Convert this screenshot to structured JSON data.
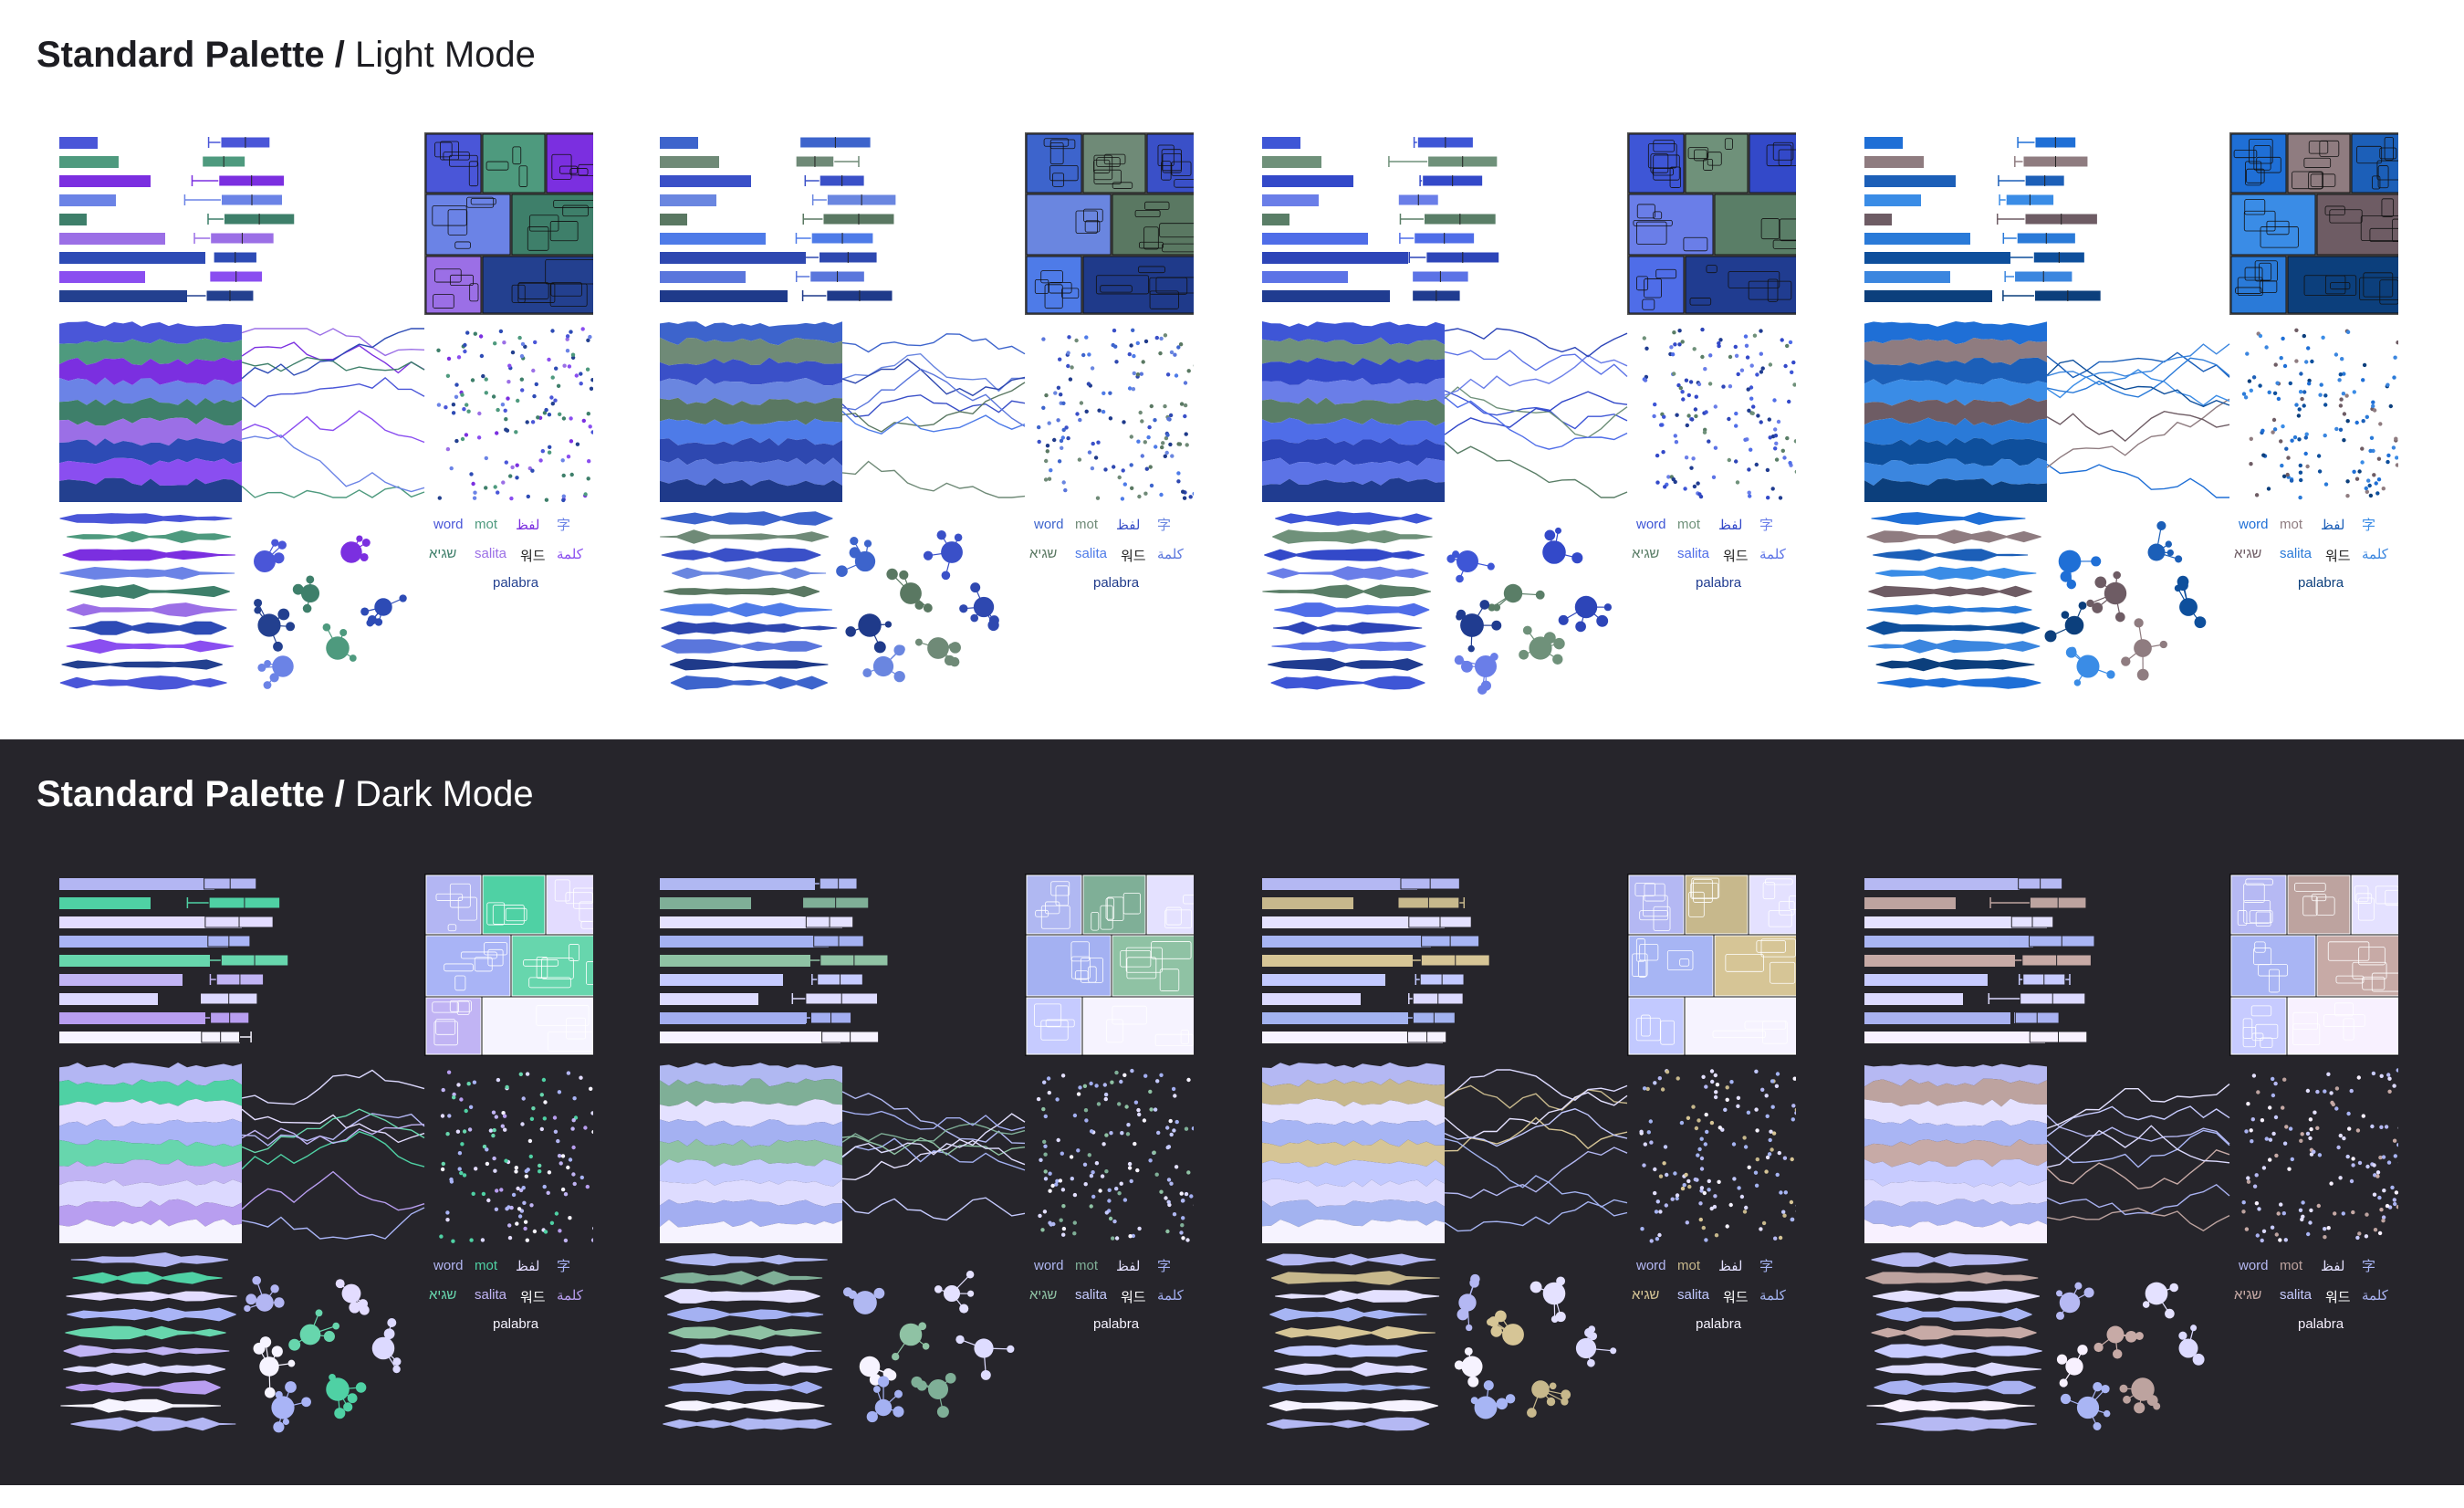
{
  "light_section": {
    "title_strong": "Standard Palette /",
    "title_rest": "Light Mode",
    "background": "#ffffff",
    "panels": [
      {
        "palette": [
          "#4a56d8",
          "#4e9a7e",
          "#7b2fe0",
          "#6b83e6",
          "#3e7f6a",
          "#9b6fe6",
          "#2d4bb5",
          "#8a4ef0",
          "#23408f"
        ]
      },
      {
        "palette": [
          "#3d64cc",
          "#6f8a77",
          "#3a50c8",
          "#6a86e0",
          "#5a7862",
          "#4e7be8",
          "#2e48b0",
          "#5a76dc",
          "#1f3a8a"
        ]
      },
      {
        "palette": [
          "#3e56d6",
          "#6f917a",
          "#3349c9",
          "#6a7ee8",
          "#5a7e67",
          "#4f6de8",
          "#2d45b8",
          "#5c73e6",
          "#203c90"
        ]
      },
      {
        "palette": [
          "#1f6fd6",
          "#8f7c80",
          "#1c5fb8",
          "#3a8ce6",
          "#6e5c64",
          "#2a7ad8",
          "#0e4f9c",
          "#3b86df",
          "#0c3f7c"
        ]
      }
    ]
  },
  "dark_section": {
    "title_strong": "Standard Palette /",
    "title_rest": "Dark Mode",
    "background": "#26252b",
    "panels": [
      {
        "palette": [
          "#b3b6f3",
          "#4fd1a4",
          "#e3dcff",
          "#a9b4f6",
          "#67d6ad",
          "#c1b4f4",
          "#dcd9ff",
          "#b89ef0",
          "#f6f4ff"
        ]
      },
      {
        "palette": [
          "#b0b8f2",
          "#7faf97",
          "#e4e1ff",
          "#a4b1f2",
          "#8fc2a4",
          "#c6cbff",
          "#dedcff",
          "#a3aef1",
          "#f6f3ff"
        ]
      },
      {
        "palette": [
          "#b4b8f3",
          "#c7b88c",
          "#e4e1ff",
          "#a7b5f4",
          "#d6c596",
          "#c2c9ff",
          "#dcdaff",
          "#a3b3f0",
          "#f6f3ff"
        ]
      },
      {
        "palette": [
          "#b6b9f3",
          "#bda39f",
          "#e4e1ff",
          "#a9b5f4",
          "#c7aaa6",
          "#c7cbff",
          "#dcdaff",
          "#a9b2f1",
          "#f8f1ff"
        ]
      }
    ]
  },
  "word_cloud": {
    "w1": "word",
    "w2": "mot",
    "w3": "لفظ",
    "w4": "字",
    "w5": "שגיא",
    "w6": "salita",
    "w7": "워드",
    "w8": "كلمة",
    "w9": "palabra"
  },
  "chart_data": {
    "type": "palette_preview",
    "title": "",
    "panel_count_per_mode": 4,
    "mini_charts": [
      "bar",
      "box",
      "treemap",
      "stream",
      "line",
      "scatter",
      "violin",
      "network",
      "word_cloud"
    ]
  }
}
